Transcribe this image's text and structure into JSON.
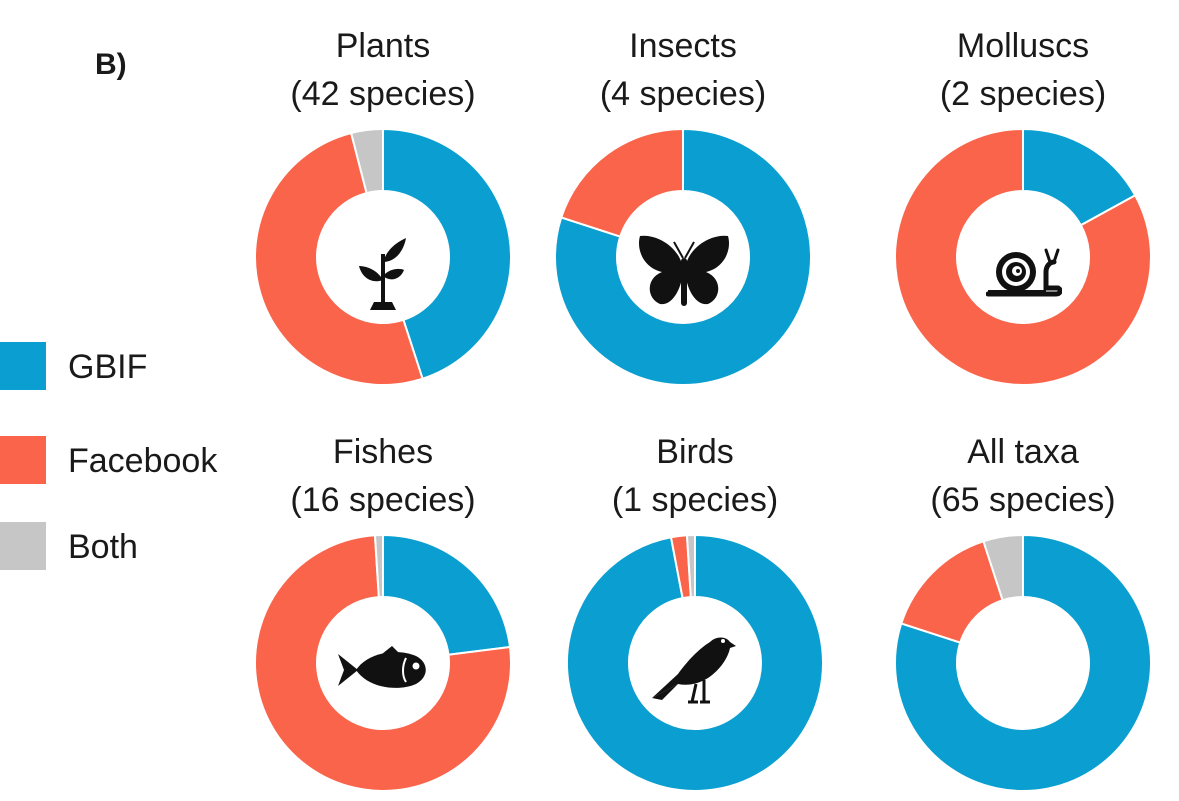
{
  "panel_label": "B)",
  "legend": [
    {
      "label": "GBIF",
      "color": "#0a9fd0"
    },
    {
      "label": "Facebook",
      "color": "#fa644b"
    },
    {
      "label": "Both",
      "color": "#c6c6c6"
    }
  ],
  "colors": {
    "gbif": "#0a9fd0",
    "facebook": "#fa644b",
    "both": "#c6c6c6"
  },
  "chart_data": [
    {
      "type": "pie",
      "title": "Plants",
      "subtitle": "(42 species)",
      "icon": "plant-sprout-icon",
      "series": [
        {
          "name": "GBIF",
          "value": 45
        },
        {
          "name": "Facebook",
          "value": 51
        },
        {
          "name": "Both",
          "value": 4
        }
      ]
    },
    {
      "type": "pie",
      "title": "Insects",
      "subtitle": "(4 species)",
      "icon": "butterfly-icon",
      "series": [
        {
          "name": "GBIF",
          "value": 80
        },
        {
          "name": "Facebook",
          "value": 20
        },
        {
          "name": "Both",
          "value": 0
        }
      ]
    },
    {
      "type": "pie",
      "title": "Molluscs",
      "subtitle": "(2 species)",
      "icon": "snail-icon",
      "series": [
        {
          "name": "GBIF",
          "value": 17
        },
        {
          "name": "Facebook",
          "value": 83
        },
        {
          "name": "Both",
          "value": 0
        }
      ]
    },
    {
      "type": "pie",
      "title": "Fishes",
      "subtitle": "(16 species)",
      "icon": "fish-icon",
      "series": [
        {
          "name": "GBIF",
          "value": 23
        },
        {
          "name": "Facebook",
          "value": 76
        },
        {
          "name": "Both",
          "value": 1
        }
      ]
    },
    {
      "type": "pie",
      "title": "Birds",
      "subtitle": "(1 species)",
      "icon": "bird-icon",
      "series": [
        {
          "name": "GBIF",
          "value": 97
        },
        {
          "name": "Facebook",
          "value": 2
        },
        {
          "name": "Both",
          "value": 1
        }
      ]
    },
    {
      "type": "pie",
      "title": "All taxa",
      "subtitle": "(65 species)",
      "icon": "",
      "series": [
        {
          "name": "GBIF",
          "value": 80
        },
        {
          "name": "Facebook",
          "value": 15
        },
        {
          "name": "Both",
          "value": 5
        }
      ]
    }
  ]
}
